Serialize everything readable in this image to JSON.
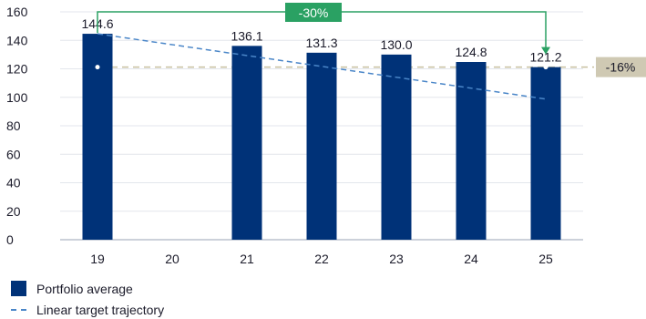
{
  "chart_data": {
    "type": "bar",
    "categories": [
      "19",
      "20",
      "21",
      "22",
      "23",
      "24",
      "25"
    ],
    "series": [
      {
        "name": "Portfolio average",
        "type": "bar",
        "values": [
          144.6,
          null,
          136.1,
          131.3,
          130.0,
          124.8,
          121.2
        ],
        "labels": [
          "144.6",
          "",
          "136.1",
          "131.3",
          "130.0",
          "124.8",
          "121.2"
        ],
        "color": "#003278"
      },
      {
        "name": "Linear target trajectory",
        "type": "line",
        "style": "dashed",
        "x": [
          "19",
          "25"
        ],
        "values": [
          144.6,
          98.8
        ],
        "color": "#4a86c8"
      }
    ],
    "reference_line": {
      "value": 121.2,
      "style": "dashed",
      "color": "#c8c0a0"
    },
    "annotations": [
      {
        "text": "-30%",
        "from": "19",
        "to": "25",
        "color": "#2aa163"
      },
      {
        "text": "-16%",
        "color": "#cfc9b3"
      }
    ],
    "yticks": [
      0,
      20,
      40,
      60,
      80,
      100,
      120,
      140,
      160
    ],
    "ylim": [
      0,
      160
    ],
    "grid": "horizontal",
    "legend_position": "bottom-left"
  },
  "legend": {
    "bar_label": "Portfolio average",
    "line_label": "Linear target trajectory"
  }
}
